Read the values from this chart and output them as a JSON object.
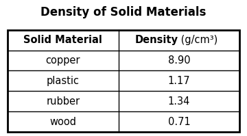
{
  "title": "Density of Solid Materials",
  "col_headers": [
    "Solid Material",
    "Density (g/cm³)"
  ],
  "rows": [
    [
      "copper",
      "8.90"
    ],
    [
      "plastic",
      "1.17"
    ],
    [
      "rubber",
      "1.34"
    ],
    [
      "wood",
      "0.71"
    ]
  ],
  "background_color": "#ffffff",
  "title_fontsize": 12,
  "header_fontsize": 10.5,
  "cell_fontsize": 10.5
}
